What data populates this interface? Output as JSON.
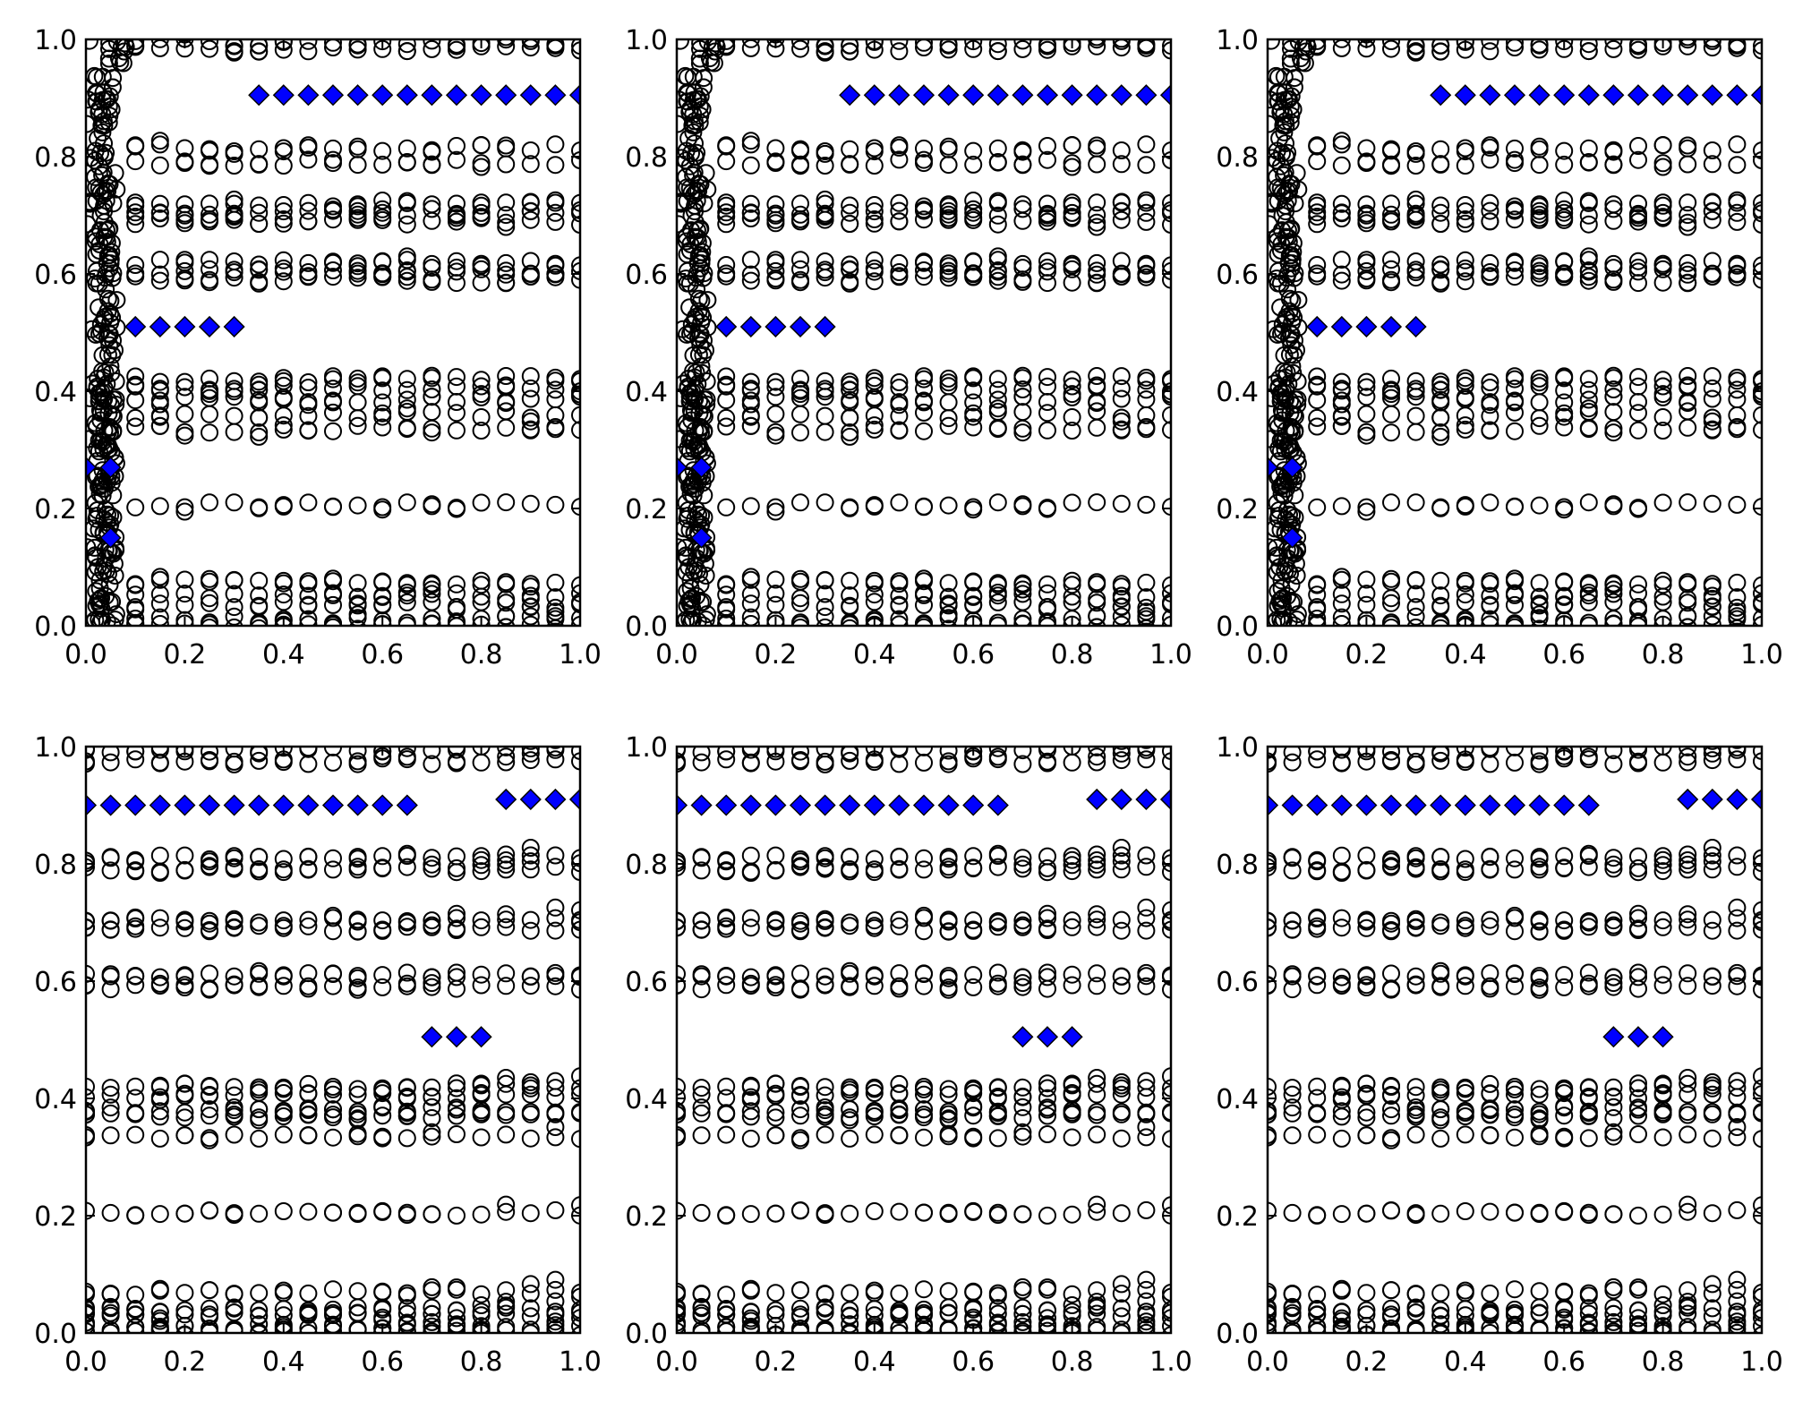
{
  "figure": {
    "rows": 2,
    "cols": 3,
    "colors": {
      "background": "#ffffff",
      "axis": "#000000",
      "circle_edge": "#000000",
      "diamond_fill": "#0000ff",
      "diamond_edge": "#000000"
    }
  },
  "chart_data": [
    {
      "type": "scatter",
      "title": "",
      "xlabel": "",
      "ylabel": "",
      "xlim": [
        0,
        1
      ],
      "ylim": [
        0,
        1
      ],
      "xticks": [
        "0.0",
        "0.2",
        "0.4",
        "0.6",
        "0.8",
        "1.0"
      ],
      "yticks": [
        "0.0",
        "0.2",
        "0.4",
        "0.6",
        "0.8",
        "1.0"
      ],
      "grid": false,
      "legend": "none",
      "variant": "top",
      "series": [
        {
          "marker": "circle-open",
          "description_levels": [
            0.0,
            0.01,
            0.035,
            0.05,
            0.075,
            0.205,
            0.335,
            0.36,
            0.385,
            0.405,
            0.42,
            0.59,
            0.605,
            0.62,
            0.69,
            0.705,
            0.72,
            0.79,
            0.815,
            0.985,
            0.995
          ]
        },
        {
          "marker": "diamond",
          "segments": [
            {
              "x_start": 0.35,
              "x_end": 1.0,
              "y": 0.905
            },
            {
              "x_start": 0.1,
              "x_end": 0.3,
              "y": 0.51
            },
            {
              "x_start": 0.0,
              "x_end": 0.05,
              "y": 0.27
            },
            {
              "x_start": 0.05,
              "x_end": 0.05,
              "y": 0.15
            }
          ]
        }
      ]
    },
    {
      "type": "scatter",
      "title": "",
      "xlabel": "",
      "ylabel": "",
      "xlim": [
        0,
        1
      ],
      "ylim": [
        0,
        1
      ],
      "xticks": [
        "0.0",
        "0.2",
        "0.4",
        "0.6",
        "0.8",
        "1.0"
      ],
      "yticks": [
        "0.0",
        "0.2",
        "0.4",
        "0.6",
        "0.8",
        "1.0"
      ],
      "grid": false,
      "legend": "none",
      "variant": "top",
      "series": [
        {
          "marker": "circle-open"
        },
        {
          "marker": "diamond",
          "segments": [
            {
              "x_start": 0.35,
              "x_end": 1.0,
              "y": 0.905
            },
            {
              "x_start": 0.1,
              "x_end": 0.3,
              "y": 0.51
            },
            {
              "x_start": 0.0,
              "x_end": 0.05,
              "y": 0.27
            },
            {
              "x_start": 0.05,
              "x_end": 0.05,
              "y": 0.15
            }
          ]
        }
      ]
    },
    {
      "type": "scatter",
      "title": "",
      "xlabel": "",
      "ylabel": "",
      "xlim": [
        0,
        1
      ],
      "ylim": [
        0,
        1
      ],
      "xticks": [
        "0.0",
        "0.2",
        "0.4",
        "0.6",
        "0.8",
        "1.0"
      ],
      "yticks": [
        "0.0",
        "0.2",
        "0.4",
        "0.6",
        "0.8",
        "1.0"
      ],
      "grid": false,
      "legend": "none",
      "variant": "top",
      "series": [
        {
          "marker": "circle-open"
        },
        {
          "marker": "diamond",
          "segments": [
            {
              "x_start": 0.35,
              "x_end": 1.0,
              "y": 0.905
            },
            {
              "x_start": 0.1,
              "x_end": 0.3,
              "y": 0.51
            },
            {
              "x_start": 0.0,
              "x_end": 0.05,
              "y": 0.27
            },
            {
              "x_start": 0.05,
              "x_end": 0.05,
              "y": 0.15
            }
          ]
        }
      ]
    },
    {
      "type": "scatter",
      "title": "",
      "xlabel": "",
      "ylabel": "",
      "xlim": [
        0,
        1
      ],
      "ylim": [
        0,
        1
      ],
      "xticks": [
        "0.0",
        "0.2",
        "0.4",
        "0.6",
        "0.8",
        "1.0"
      ],
      "yticks": [
        "0.0",
        "0.2",
        "0.4",
        "0.6",
        "0.8",
        "1.0"
      ],
      "grid": false,
      "legend": "none",
      "variant": "bottom",
      "series": [
        {
          "marker": "circle-open"
        },
        {
          "marker": "diamond",
          "segments": [
            {
              "x_start": 0.0,
              "x_end": 0.65,
              "y": 0.9
            },
            {
              "x_start": 0.85,
              "x_end": 1.0,
              "y": 0.91
            },
            {
              "x_start": 0.7,
              "x_end": 0.8,
              "y": 0.505
            }
          ]
        }
      ]
    },
    {
      "type": "scatter",
      "title": "",
      "xlabel": "",
      "ylabel": "",
      "xlim": [
        0,
        1
      ],
      "ylim": [
        0,
        1
      ],
      "xticks": [
        "0.0",
        "0.2",
        "0.4",
        "0.6",
        "0.8",
        "1.0"
      ],
      "yticks": [
        "0.0",
        "0.2",
        "0.4",
        "0.6",
        "0.8",
        "1.0"
      ],
      "grid": false,
      "legend": "none",
      "variant": "bottom",
      "series": [
        {
          "marker": "circle-open"
        },
        {
          "marker": "diamond",
          "segments": [
            {
              "x_start": 0.0,
              "x_end": 0.65,
              "y": 0.9
            },
            {
              "x_start": 0.85,
              "x_end": 1.0,
              "y": 0.91
            },
            {
              "x_start": 0.7,
              "x_end": 0.8,
              "y": 0.505
            }
          ]
        }
      ]
    },
    {
      "type": "scatter",
      "title": "",
      "xlabel": "",
      "ylabel": "",
      "xlim": [
        0,
        1
      ],
      "ylim": [
        0,
        1
      ],
      "xticks": [
        "0.0",
        "0.2",
        "0.4",
        "0.6",
        "0.8",
        "1.0"
      ],
      "yticks": [
        "0.0",
        "0.2",
        "0.4",
        "0.6",
        "0.8",
        "1.0"
      ],
      "grid": false,
      "legend": "none",
      "variant": "bottom",
      "series": [
        {
          "marker": "circle-open"
        },
        {
          "marker": "diamond",
          "segments": [
            {
              "x_start": 0.0,
              "x_end": 0.65,
              "y": 0.9
            },
            {
              "x_start": 0.85,
              "x_end": 1.0,
              "y": 0.91
            },
            {
              "x_start": 0.7,
              "x_end": 0.8,
              "y": 0.505
            }
          ]
        }
      ]
    }
  ]
}
